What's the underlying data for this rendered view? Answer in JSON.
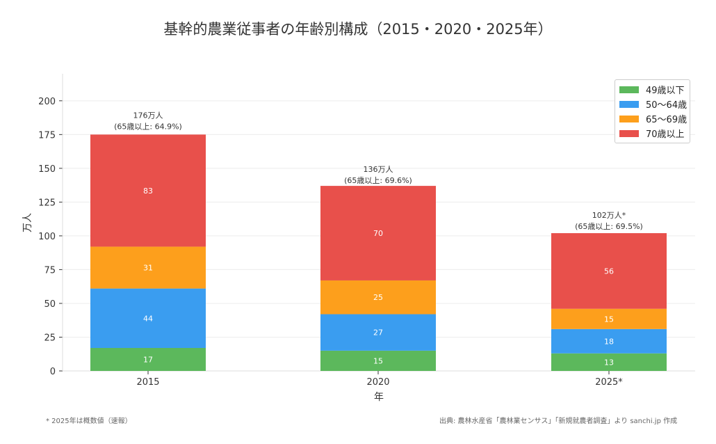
{
  "chart_data": {
    "type": "bar",
    "stacked": true,
    "title": "基幹的農業従事者の年齢別構成（2015・2020・2025年）",
    "xlabel": "年",
    "ylabel": "万人",
    "ylim": [
      0,
      220
    ],
    "yticks": [
      0,
      25,
      50,
      75,
      100,
      125,
      150,
      175,
      200
    ],
    "categories": [
      "2015",
      "2020",
      "2025*"
    ],
    "series": [
      {
        "name": "49歳以下",
        "color": "#5cb85c",
        "values": [
          17,
          15,
          13
        ]
      },
      {
        "name": "50〜64歳",
        "color": "#3a9df0",
        "values": [
          44,
          27,
          18
        ]
      },
      {
        "name": "65〜69歳",
        "color": "#fd9f1c",
        "values": [
          31,
          25,
          15
        ]
      },
      {
        "name": "70歳以上",
        "color": "#e8504b",
        "values": [
          83,
          70,
          56
        ]
      }
    ],
    "totals": [
      176,
      136,
      102
    ],
    "total_labels": [
      [
        "176万人",
        "(65歳以上: 64.9%)"
      ],
      [
        "136万人",
        "(65歳以上: 69.6%)"
      ],
      [
        "102万人*",
        "(65歳以上: 69.5%)"
      ]
    ],
    "grid": true,
    "legend": "top-right"
  },
  "footnote": "* 2025年は概数値（速報）",
  "source": "出典: 農林水産省「農林業センサス」「新規就農者調査」より sanchi.jp 作成"
}
